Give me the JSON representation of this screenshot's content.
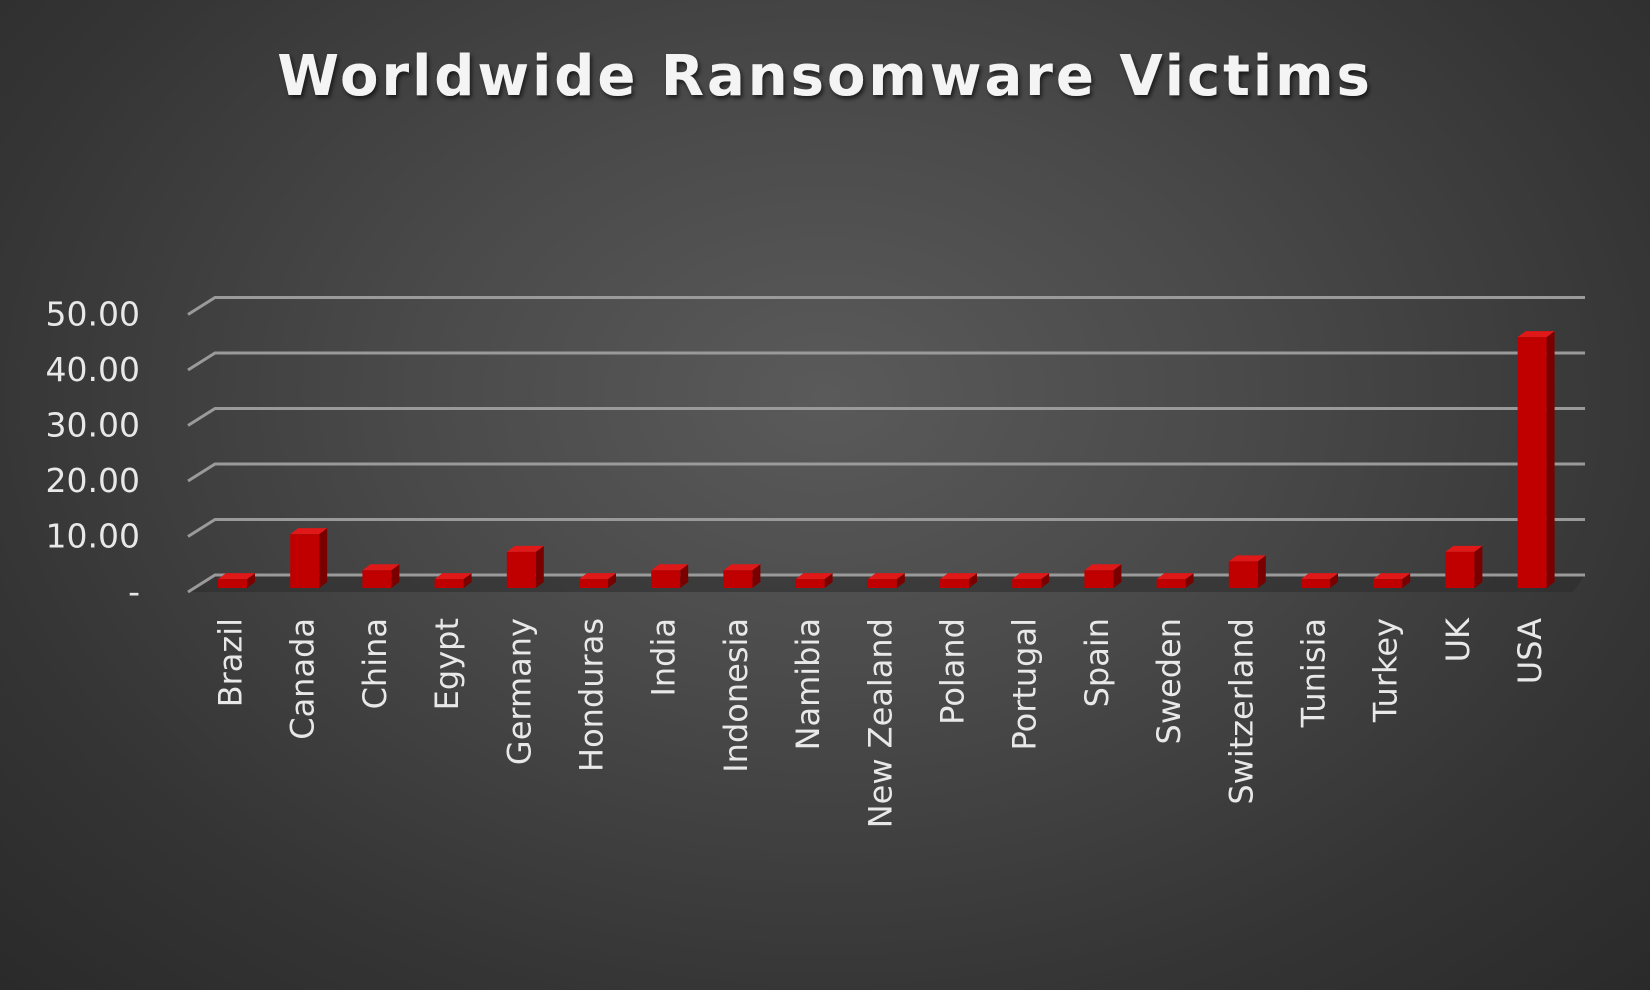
{
  "chart_data": {
    "type": "bar",
    "title": "Worldwide Ransomware Victims",
    "xlabel": "",
    "ylabel": "",
    "categories": [
      "Brazil",
      "Canada",
      "China",
      "Egypt",
      "Germany",
      "Honduras",
      "India",
      "Indonesia",
      "Namibia",
      "New Zealand",
      "Poland",
      "Portugal",
      "Spain",
      "Sweden",
      "Switzerland",
      "Tunisia",
      "Turkey",
      "UK",
      "USA"
    ],
    "values": [
      1.6,
      9.7,
      3.2,
      1.6,
      6.5,
      1.6,
      3.2,
      3.2,
      1.6,
      1.6,
      1.6,
      1.6,
      3.2,
      1.6,
      4.8,
      1.6,
      1.6,
      6.5,
      45.2
    ],
    "ylim": [
      0,
      50
    ],
    "yticks": [
      0,
      10,
      20,
      30,
      40,
      50
    ],
    "ytick_labels": [
      "-",
      "10.00",
      "20.00",
      "30.00",
      "40.00",
      "50.00"
    ],
    "grid": true,
    "legend": "none",
    "bar_color": "#c00000",
    "style": "3d-column"
  }
}
